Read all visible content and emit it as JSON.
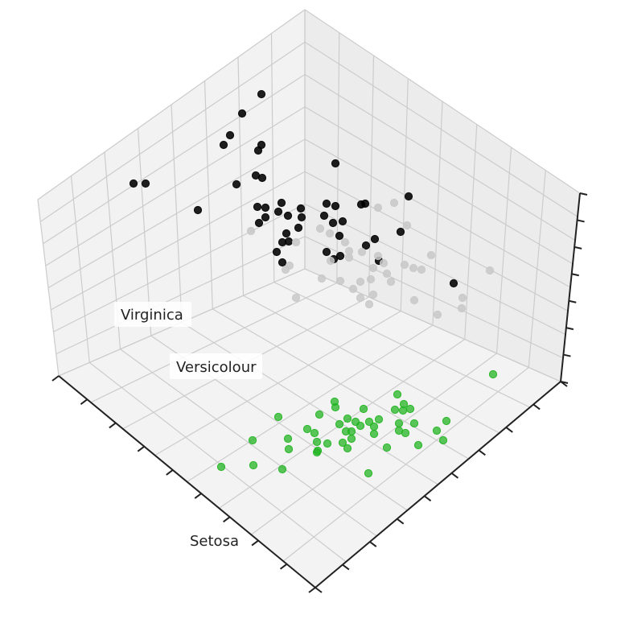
{
  "chart_data": {
    "type": "scatter",
    "projection": "3d",
    "title": "",
    "xlabel": "",
    "ylabel": "",
    "zlabel": "",
    "grid": true,
    "legend": "none",
    "annotations": [
      "Setosa",
      "Versicolour",
      "Virginica"
    ],
    "colors": {
      "pane": "#f2f2f2",
      "grid": "#cccccc",
      "axis": "#222222",
      "cluster_black": "#000000",
      "cluster_grey": "#c8c8c8",
      "cluster_green": "#1db31d"
    },
    "series": [
      {
        "color": "#000000",
        "points": [
          [
            325,
            117
          ],
          [
            301,
            141
          ],
          [
            286,
            168
          ],
          [
            278,
            180
          ],
          [
            325,
            180
          ],
          [
            321,
            187
          ],
          [
            166,
            228
          ],
          [
            181,
            228
          ],
          [
            246,
            261
          ],
          [
            318,
            218
          ],
          [
            326,
            221
          ],
          [
            294,
            229
          ],
          [
            417,
            203
          ],
          [
            350,
            252
          ],
          [
            406,
            253
          ],
          [
            417,
            256
          ],
          [
            374,
            259
          ],
          [
            320,
            257
          ],
          [
            330,
            258
          ],
          [
            346,
            263
          ],
          [
            358,
            268
          ],
          [
            330,
            270
          ],
          [
            375,
            270
          ],
          [
            403,
            268
          ],
          [
            414,
            277
          ],
          [
            426,
            275
          ],
          [
            322,
            277
          ],
          [
            371,
            283
          ],
          [
            356,
            290
          ],
          [
            422,
            293
          ],
          [
            466,
            297
          ],
          [
            455,
            305
          ],
          [
            351,
            301
          ],
          [
            359,
            300
          ],
          [
            344,
            313
          ],
          [
            406,
            313
          ],
          [
            423,
            318
          ],
          [
            415,
            322
          ],
          [
            471,
            324
          ],
          [
            351,
            326
          ],
          [
            449,
            254
          ],
          [
            454,
            253
          ],
          [
            508,
            244
          ],
          [
            498,
            288
          ],
          [
            564,
            352
          ]
        ]
      },
      {
        "color": "#c8c8c8",
        "points": [
          [
            490,
            252
          ],
          [
            470,
            258
          ],
          [
            506,
            280
          ],
          [
            312,
            287
          ],
          [
            398,
            284
          ],
          [
            410,
            290
          ],
          [
            368,
            301
          ],
          [
            429,
            301
          ],
          [
            434,
            312
          ],
          [
            450,
            313
          ],
          [
            470,
            318
          ],
          [
            477,
            327
          ],
          [
            411,
            324
          ],
          [
            434,
            320
          ],
          [
            355,
            335
          ],
          [
            360,
            330
          ],
          [
            464,
            333
          ],
          [
            481,
            340
          ],
          [
            503,
            329
          ],
          [
            524,
            335
          ],
          [
            536,
            317
          ],
          [
            514,
            333
          ],
          [
            609,
            336
          ],
          [
            400,
            346
          ],
          [
            448,
            350
          ],
          [
            461,
            347
          ],
          [
            486,
            350
          ],
          [
            423,
            349
          ],
          [
            439,
            359
          ],
          [
            448,
            370
          ],
          [
            464,
            366
          ],
          [
            459,
            378
          ],
          [
            515,
            373
          ],
          [
            368,
            370
          ],
          [
            575,
            370
          ],
          [
            574,
            383
          ],
          [
            544,
            391
          ]
        ]
      },
      {
        "color": "#1db31d",
        "points": [
          [
            613,
            465
          ],
          [
            494,
            490
          ],
          [
            416,
            499
          ],
          [
            502,
            502
          ],
          [
            417,
            506
          ],
          [
            452,
            508
          ],
          [
            491,
            509
          ],
          [
            501,
            510
          ],
          [
            510,
            508
          ],
          [
            346,
            518
          ],
          [
            397,
            515
          ],
          [
            432,
            520
          ],
          [
            442,
            524
          ],
          [
            471,
            521
          ],
          [
            459,
            524
          ],
          [
            422,
            527
          ],
          [
            448,
            529
          ],
          [
            496,
            526
          ],
          [
            515,
            526
          ],
          [
            555,
            523
          ],
          [
            382,
            533
          ],
          [
            391,
            538
          ],
          [
            430,
            536
          ],
          [
            437,
            536
          ],
          [
            465,
            530
          ],
          [
            496,
            535
          ],
          [
            504,
            538
          ],
          [
            543,
            535
          ],
          [
            314,
            547
          ],
          [
            358,
            545
          ],
          [
            437,
            545
          ],
          [
            394,
            549
          ],
          [
            407,
            551
          ],
          [
            426,
            550
          ],
          [
            465,
            539
          ],
          [
            520,
            553
          ],
          [
            551,
            547
          ],
          [
            359,
            558
          ],
          [
            395,
            560
          ],
          [
            394,
            562
          ],
          [
            432,
            557
          ],
          [
            481,
            556
          ],
          [
            275,
            580
          ],
          [
            315,
            578
          ],
          [
            351,
            583
          ],
          [
            458,
            588
          ]
        ]
      }
    ]
  }
}
